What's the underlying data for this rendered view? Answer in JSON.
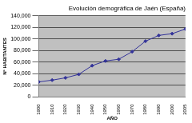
{
  "chart_data": {
    "type": "line",
    "title": "Evolución demográfica de Jaén (España)",
    "x_label": "AÑO",
    "y_label": "Nº HABITANTES",
    "categories": [
      "1900",
      "1910",
      "1920",
      "1930",
      "1940",
      "1950",
      "1960",
      "1970",
      "1980",
      "1990",
      "2000",
      "2005"
    ],
    "values": [
      26000,
      29000,
      33000,
      39000,
      54000,
      62000,
      65000,
      78000,
      96000,
      106000,
      109000,
      117000
    ],
    "color": "#333399",
    "marker": "diamond",
    "ylim": [
      0,
      140000
    ],
    "yticks": [
      0,
      {
        "value": 20000,
        "label": "20,000"
      },
      {
        "value": 40000,
        "label": "40,000"
      },
      {
        "value": 60000,
        "label": "60,000"
      },
      {
        "value": 80000,
        "label": "80,000"
      },
      {
        "value": 100000,
        "label": "100,000"
      },
      {
        "value": 120000,
        "label": "120,000"
      },
      {
        "value": 140000,
        "label": "140,000"
      }
    ],
    "grid": true
  }
}
